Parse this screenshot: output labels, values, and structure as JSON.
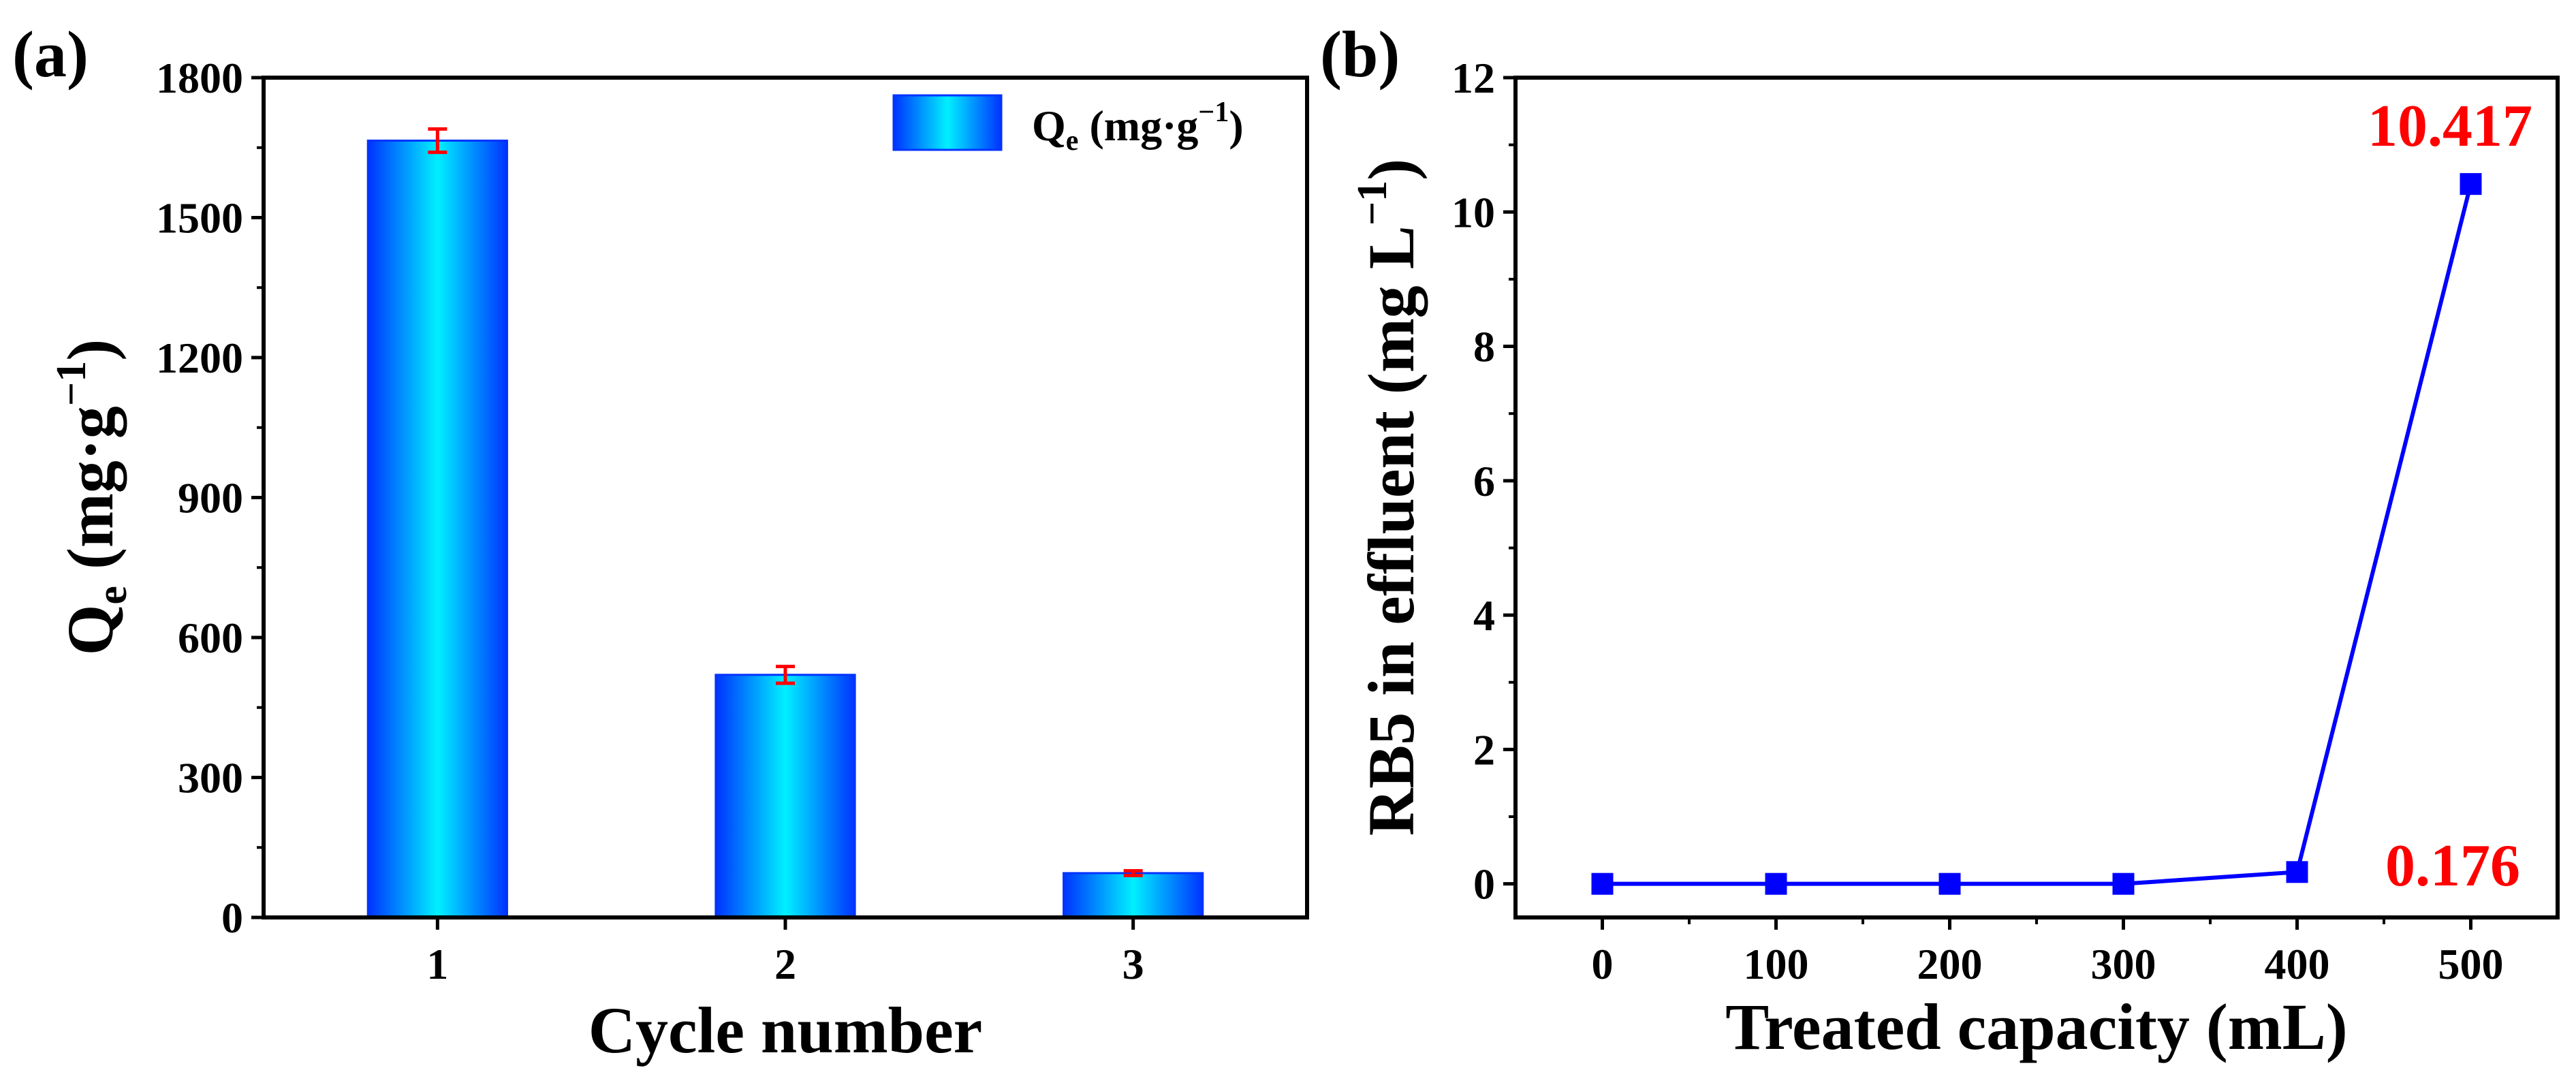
{
  "chart_data": [
    {
      "panel_label": "(a)",
      "type": "bar",
      "categories": [
        "1",
        "2",
        "3"
      ],
      "series": [
        {
          "name": "Qe (mg·g−1)",
          "values": [
            1665,
            520,
            95
          ],
          "errors": [
            25,
            18,
            5
          ]
        }
      ],
      "legend": {
        "main": "Q",
        "sub": "e",
        "rest": " (mg·g",
        "sup": "−1",
        "close": ")"
      },
      "ylabel": {
        "main": "Q",
        "sub": "e",
        "rest": " (mg·g",
        "sup": "−1",
        "close": ")"
      },
      "xlabel": "Cycle number",
      "ylim": [
        0,
        1800
      ],
      "yticks": [
        "0",
        "300",
        "600",
        "900",
        "1200",
        "1500",
        "1800"
      ],
      "ytick_values": [
        0,
        300,
        600,
        900,
        1200,
        1500,
        1800
      ],
      "bar_color": "#00e5ff",
      "bar_edge_color": "#0033ff",
      "error_color": "#ff0000",
      "legend_position": "top-right"
    },
    {
      "panel_label": "(b)",
      "type": "line",
      "x": [
        0,
        100,
        200,
        300,
        400,
        500
      ],
      "y": [
        0,
        0,
        0,
        0,
        0.176,
        10.417
      ],
      "xticks": [
        "0",
        "100",
        "200",
        "300",
        "400",
        "500"
      ],
      "xtick_values": [
        0,
        100,
        200,
        300,
        400,
        500
      ],
      "xlim": [
        -50,
        550
      ],
      "ylim": [
        -0.5,
        12
      ],
      "yticks": [
        "0",
        "2",
        "4",
        "6",
        "8",
        "10",
        "12"
      ],
      "ytick_values": [
        0,
        2,
        4,
        6,
        8,
        10,
        12
      ],
      "xlabel": "Treated capacity (mL)",
      "ylabel": {
        "main": "RB5 in effluent (mg L",
        "sup": "−1",
        "close": ")"
      },
      "line_color": "#0000ff",
      "annotations": [
        "10.417",
        "0.176"
      ],
      "annotation_color": "#ff0000"
    }
  ]
}
